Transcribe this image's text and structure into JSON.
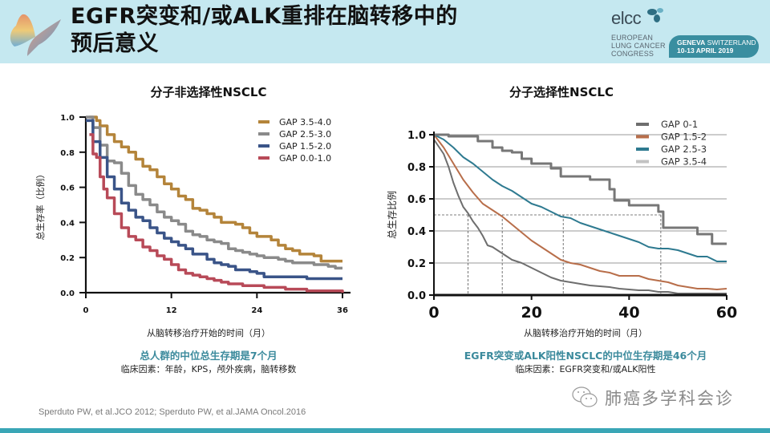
{
  "header": {
    "title_line1": "EGFR突变和/或ALK重排在脑转移中的",
    "title_line2": "预后意义",
    "logo_icon": "butterfly-logo-icon",
    "congress": {
      "name": "elcc",
      "line1": "EUROPEAN",
      "line2": "LUNG CANCER",
      "line3": "CONGRESS",
      "location_bold": "GENEVA",
      "location": "SWITZERLAND",
      "dates": "10-13 APRIL 2019",
      "accent": "#3a8ea0"
    }
  },
  "left_panel": {
    "xlabel": "从脑转移治疗开始的时间（月）",
    "highlight": "总人群的中位总生存期是7个月",
    "factors": "临床因素：年龄，KPS，颅外疾病，脑转移数"
  },
  "right_panel": {
    "xlabel": "从脑转移治疗开始的时间（月）",
    "highlight": "EGFR突变或ALK阳性NSCLC的中位生存期是46个月",
    "factors": "临床因素：EGFR突变和/或ALK阳性"
  },
  "footer": {
    "reference": "Sperduto PW, et al.JCO 2012; Sperduto PW, et al.JAMA Oncol.2016",
    "watermark_icon": "wechat-icon",
    "watermark": "肺癌多学科会诊",
    "bar_color": "#3aa6b6"
  },
  "chart_data": [
    {
      "type": "line",
      "title": "分子非选择性NSCLC",
      "xlabel": "从脑转移治疗开始的时间（月）",
      "ylabel": "总生存率（比例）",
      "xlim": [
        0,
        36
      ],
      "ylim": [
        0,
        1.0
      ],
      "xticks": [
        "0",
        "12",
        "24",
        "36"
      ],
      "yticks": [
        "0.0",
        "0.2",
        "0.4",
        "0.6",
        "0.8",
        "1.0"
      ],
      "grid": false,
      "legend": "top-right",
      "series": [
        {
          "name": "GAP 3.5-4.0",
          "color": "#b4843a",
          "x": [
            0.5,
            1.5,
            2,
            3,
            4,
            5,
            6,
            7,
            8,
            9,
            10,
            11,
            12,
            13,
            14,
            15,
            16,
            17,
            18,
            19,
            20,
            21,
            22,
            23,
            24,
            25,
            26,
            27,
            28,
            29,
            30,
            31,
            32,
            33,
            34,
            35,
            36
          ],
          "y": [
            1.0,
            0.98,
            0.95,
            0.9,
            0.86,
            0.83,
            0.8,
            0.76,
            0.72,
            0.7,
            0.66,
            0.62,
            0.59,
            0.55,
            0.53,
            0.48,
            0.47,
            0.45,
            0.43,
            0.4,
            0.4,
            0.39,
            0.37,
            0.34,
            0.32,
            0.32,
            0.3,
            0.27,
            0.25,
            0.24,
            0.22,
            0.22,
            0.21,
            0.18,
            0.18,
            0.18,
            0.18
          ]
        },
        {
          "name": "GAP 2.5-3.0",
          "color": "#8a8a8a",
          "x": [
            0,
            1,
            2,
            3,
            4,
            5,
            6,
            7,
            8,
            9,
            10,
            11,
            12,
            13,
            14,
            15,
            16,
            17,
            18,
            19,
            20,
            21,
            22,
            23,
            24,
            25,
            26,
            27,
            28,
            29,
            30,
            31,
            32,
            33,
            34,
            35,
            36
          ],
          "y": [
            1.0,
            0.94,
            0.84,
            0.75,
            0.74,
            0.68,
            0.61,
            0.56,
            0.53,
            0.5,
            0.46,
            0.43,
            0.41,
            0.39,
            0.35,
            0.33,
            0.32,
            0.3,
            0.29,
            0.28,
            0.25,
            0.24,
            0.23,
            0.22,
            0.21,
            0.2,
            0.2,
            0.19,
            0.18,
            0.17,
            0.17,
            0.17,
            0.16,
            0.16,
            0.15,
            0.14,
            0.14
          ]
        },
        {
          "name": "GAP 1.5-2.0",
          "color": "#3a5488",
          "x": [
            0,
            1,
            2,
            3,
            4,
            5,
            6,
            7,
            8,
            9,
            10,
            11,
            12,
            13,
            14,
            15,
            16,
            17,
            18,
            19,
            20,
            21,
            22,
            23,
            24,
            25,
            26,
            27,
            28,
            29,
            30,
            31,
            32,
            33,
            34,
            35,
            36
          ],
          "y": [
            0.98,
            0.86,
            0.77,
            0.66,
            0.59,
            0.51,
            0.47,
            0.43,
            0.41,
            0.37,
            0.34,
            0.31,
            0.29,
            0.27,
            0.25,
            0.22,
            0.22,
            0.19,
            0.17,
            0.16,
            0.15,
            0.13,
            0.13,
            0.12,
            0.11,
            0.09,
            0.09,
            0.09,
            0.09,
            0.09,
            0.09,
            0.08,
            0.08,
            0.08,
            0.08,
            0.08,
            0.08
          ]
        },
        {
          "name": "GAP 0.0-1.0",
          "color": "#b84a58",
          "x": [
            0.5,
            1,
            1.5,
            2,
            2.5,
            3,
            4,
            5,
            6,
            7,
            8,
            9,
            10,
            11,
            12,
            13,
            14,
            15,
            16,
            17,
            18,
            19,
            20,
            21,
            22,
            23,
            24,
            25,
            26,
            27,
            28,
            29,
            30,
            31,
            32,
            33,
            34,
            35,
            36
          ],
          "y": [
            0.9,
            0.79,
            0.77,
            0.66,
            0.59,
            0.54,
            0.45,
            0.37,
            0.32,
            0.3,
            0.26,
            0.24,
            0.21,
            0.19,
            0.16,
            0.13,
            0.11,
            0.1,
            0.09,
            0.08,
            0.07,
            0.06,
            0.05,
            0.05,
            0.04,
            0.04,
            0.04,
            0.03,
            0.03,
            0.03,
            0.02,
            0.02,
            0.02,
            0.01,
            0.01,
            0.01,
            0.01,
            0.01,
            0.0
          ]
        }
      ]
    },
    {
      "type": "line",
      "title": "分子选择性NSCLC",
      "xlabel": "从脑转移治疗开始的时间（月）",
      "ylabel": "总生存比例",
      "xlim": [
        0,
        60
      ],
      "ylim": [
        0,
        1.0
      ],
      "xticks": [
        "0",
        "20",
        "40",
        "60"
      ],
      "yticks": [
        "0.0",
        "0.2",
        "0.4",
        "0.6",
        "0.8",
        "1.0"
      ],
      "grid": true,
      "legend": "top-right",
      "median_line_y": 0.5,
      "medians": [
        7,
        14,
        26.5,
        46.5
      ],
      "series": [
        {
          "name": "GAP 0-1",
          "color": "#6e6e6e",
          "x": [
            0,
            2,
            3,
            4,
            5,
            6,
            7,
            8,
            9,
            10,
            11,
            12,
            13,
            14,
            15,
            16,
            18,
            20,
            22,
            24,
            26,
            28,
            30,
            32,
            34,
            36,
            38,
            40,
            42,
            44,
            46,
            48,
            50,
            52,
            54,
            56,
            58,
            60
          ],
          "y": [
            0.97,
            0.88,
            0.8,
            0.7,
            0.62,
            0.55,
            0.51,
            0.46,
            0.42,
            0.37,
            0.31,
            0.3,
            0.28,
            0.26,
            0.24,
            0.22,
            0.2,
            0.17,
            0.14,
            0.11,
            0.09,
            0.08,
            0.07,
            0.06,
            0.055,
            0.05,
            0.04,
            0.035,
            0.03,
            0.03,
            0.02,
            0.02,
            0.01,
            0.01,
            0.01,
            0.01,
            0.01,
            0.01
          ]
        },
        {
          "name": "GAP 1.5-2",
          "color": "#b86e4a",
          "x": [
            0,
            2,
            4,
            6,
            8,
            10,
            12,
            14,
            16,
            18,
            20,
            22,
            24,
            26,
            28,
            30,
            32,
            34,
            36,
            38,
            40,
            42,
            44,
            46,
            48,
            50,
            52,
            54,
            56,
            58,
            60
          ],
          "y": [
            1.0,
            0.92,
            0.82,
            0.72,
            0.64,
            0.57,
            0.53,
            0.49,
            0.44,
            0.39,
            0.34,
            0.3,
            0.26,
            0.22,
            0.2,
            0.19,
            0.17,
            0.15,
            0.14,
            0.12,
            0.12,
            0.12,
            0.1,
            0.09,
            0.08,
            0.06,
            0.05,
            0.04,
            0.04,
            0.035,
            0.04
          ]
        },
        {
          "name": "GAP 2.5-3",
          "color": "#2e7a90",
          "x": [
            0,
            2,
            4,
            6,
            8,
            10,
            12,
            14,
            16,
            18,
            20,
            22,
            24,
            26,
            28,
            30,
            32,
            34,
            36,
            38,
            40,
            42,
            44,
            46,
            48,
            50,
            52,
            54,
            56,
            58,
            60
          ],
          "y": [
            1.0,
            0.97,
            0.92,
            0.86,
            0.82,
            0.77,
            0.72,
            0.68,
            0.65,
            0.61,
            0.57,
            0.55,
            0.52,
            0.49,
            0.48,
            0.45,
            0.43,
            0.41,
            0.39,
            0.37,
            0.35,
            0.33,
            0.3,
            0.29,
            0.29,
            0.28,
            0.26,
            0.24,
            0.24,
            0.21,
            0.21
          ]
        },
        {
          "name": "GAP 3.5-4",
          "color": "#c2c2c2",
          "x": [
            0,
            60
          ],
          "y": [
            1.0,
            1.0
          ],
          "hidden_line": true
        },
        {
          "name": "GAP 0-1 (top KM)",
          "color": "#777777",
          "x": [
            0,
            3,
            8,
            9,
            12,
            14,
            16,
            18,
            20,
            24,
            26,
            28,
            32,
            36,
            37,
            38,
            40,
            44,
            46,
            47,
            50,
            52,
            54,
            56,
            57,
            60
          ],
          "y": [
            1.0,
            0.99,
            0.99,
            0.96,
            0.92,
            0.9,
            0.89,
            0.85,
            0.82,
            0.79,
            0.74,
            0.74,
            0.72,
            0.66,
            0.59,
            0.59,
            0.56,
            0.56,
            0.52,
            0.42,
            0.42,
            0.42,
            0.38,
            0.38,
            0.32,
            0.32
          ],
          "step": true
        }
      ]
    }
  ]
}
